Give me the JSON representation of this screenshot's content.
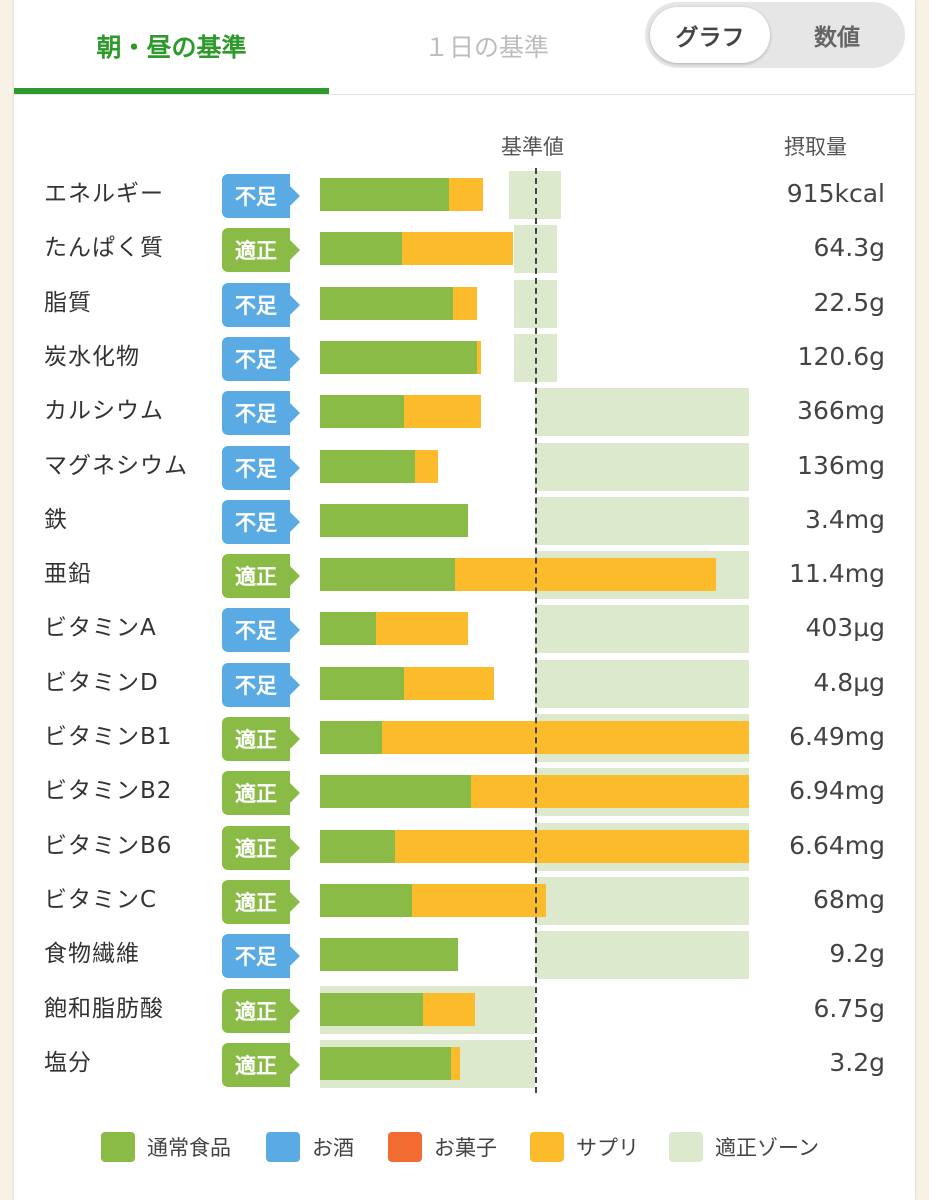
{
  "tabs": {
    "active": "朝・昼の基準",
    "inactive": "１日の基準"
  },
  "toggle": {
    "graph": "グラフ",
    "value": "数値"
  },
  "headers": {
    "reference": "基準値",
    "intake": "摂取量"
  },
  "colors": {
    "food": "#8abb46",
    "alcohol": "#5aabe3",
    "snack": "#f26b30",
    "supplement": "#fbbb2b",
    "zone": "#dde9cc"
  },
  "legend": [
    {
      "label": "通常食品",
      "color": "#8abb46"
    },
    {
      "label": "お酒",
      "color": "#5aabe3"
    },
    {
      "label": "お菓子",
      "color": "#f26b30"
    },
    {
      "label": "サプリ",
      "color": "#fbbb2b"
    },
    {
      "label": "適正ゾーン",
      "color": "#dde9cc"
    }
  ],
  "nutrients": [
    {
      "name": "エネルギー",
      "status": "不足",
      "amount": "915kcal",
      "food_pct": 60,
      "sup_pct": 76,
      "zone_pct": [
        88,
        112
      ]
    },
    {
      "name": "たんぱく質",
      "status": "適正",
      "amount": "64.3g",
      "food_pct": 38,
      "sup_pct": 90,
      "zone_pct": [
        90,
        110
      ]
    },
    {
      "name": "脂質",
      "status": "不足",
      "amount": "22.5g",
      "food_pct": 62,
      "sup_pct": 73,
      "zone_pct": [
        90,
        110
      ]
    },
    {
      "name": "炭水化物",
      "status": "不足",
      "amount": "120.6g",
      "food_pct": 73,
      "sup_pct": 75,
      "zone_pct": [
        90,
        110
      ]
    },
    {
      "name": "カルシウム",
      "status": "不足",
      "amount": "366mg",
      "food_pct": 39,
      "sup_pct": 75,
      "zone_pct": [
        100,
        200
      ]
    },
    {
      "name": "マグネシウム",
      "status": "不足",
      "amount": "136mg",
      "food_pct": 44,
      "sup_pct": 55,
      "zone_pct": [
        100,
        200
      ]
    },
    {
      "name": "鉄",
      "status": "不足",
      "amount": "3.4mg",
      "food_pct": 69,
      "sup_pct": 69,
      "zone_pct": [
        100,
        200
      ]
    },
    {
      "name": "亜鉛",
      "status": "適正",
      "amount": "11.4mg",
      "food_pct": 63,
      "sup_pct": 184,
      "zone_pct": [
        100,
        200
      ]
    },
    {
      "name": "ビタミンA",
      "status": "不足",
      "amount": "403μg",
      "food_pct": 26,
      "sup_pct": 69,
      "zone_pct": [
        100,
        200
      ]
    },
    {
      "name": "ビタミンD",
      "status": "不足",
      "amount": "4.8μg",
      "food_pct": 39,
      "sup_pct": 81,
      "zone_pct": [
        100,
        200
      ]
    },
    {
      "name": "ビタミンB1",
      "status": "適正",
      "amount": "6.49mg",
      "food_pct": 29,
      "sup_pct": 200,
      "zone_pct": [
        100,
        200
      ]
    },
    {
      "name": "ビタミンB2",
      "status": "適正",
      "amount": "6.94mg",
      "food_pct": 70,
      "sup_pct": 200,
      "zone_pct": [
        100,
        200
      ]
    },
    {
      "name": "ビタミンB6",
      "status": "適正",
      "amount": "6.64mg",
      "food_pct": 35,
      "sup_pct": 200,
      "zone_pct": [
        100,
        200
      ]
    },
    {
      "name": "ビタミンC",
      "status": "適正",
      "amount": "68mg",
      "food_pct": 43,
      "sup_pct": 105,
      "zone_pct": [
        100,
        200
      ]
    },
    {
      "name": "食物繊維",
      "status": "不足",
      "amount": "9.2g",
      "food_pct": 64,
      "sup_pct": 64,
      "zone_pct": [
        100,
        200
      ]
    },
    {
      "name": "飽和脂肪酸",
      "status": "適正",
      "amount": "6.75g",
      "food_pct": 48,
      "sup_pct": 72,
      "zone_pct": [
        0,
        100
      ]
    },
    {
      "name": "塩分",
      "status": "適正",
      "amount": "3.2g",
      "food_pct": 61,
      "sup_pct": 65,
      "zone_pct": [
        0,
        100
      ]
    }
  ]
}
